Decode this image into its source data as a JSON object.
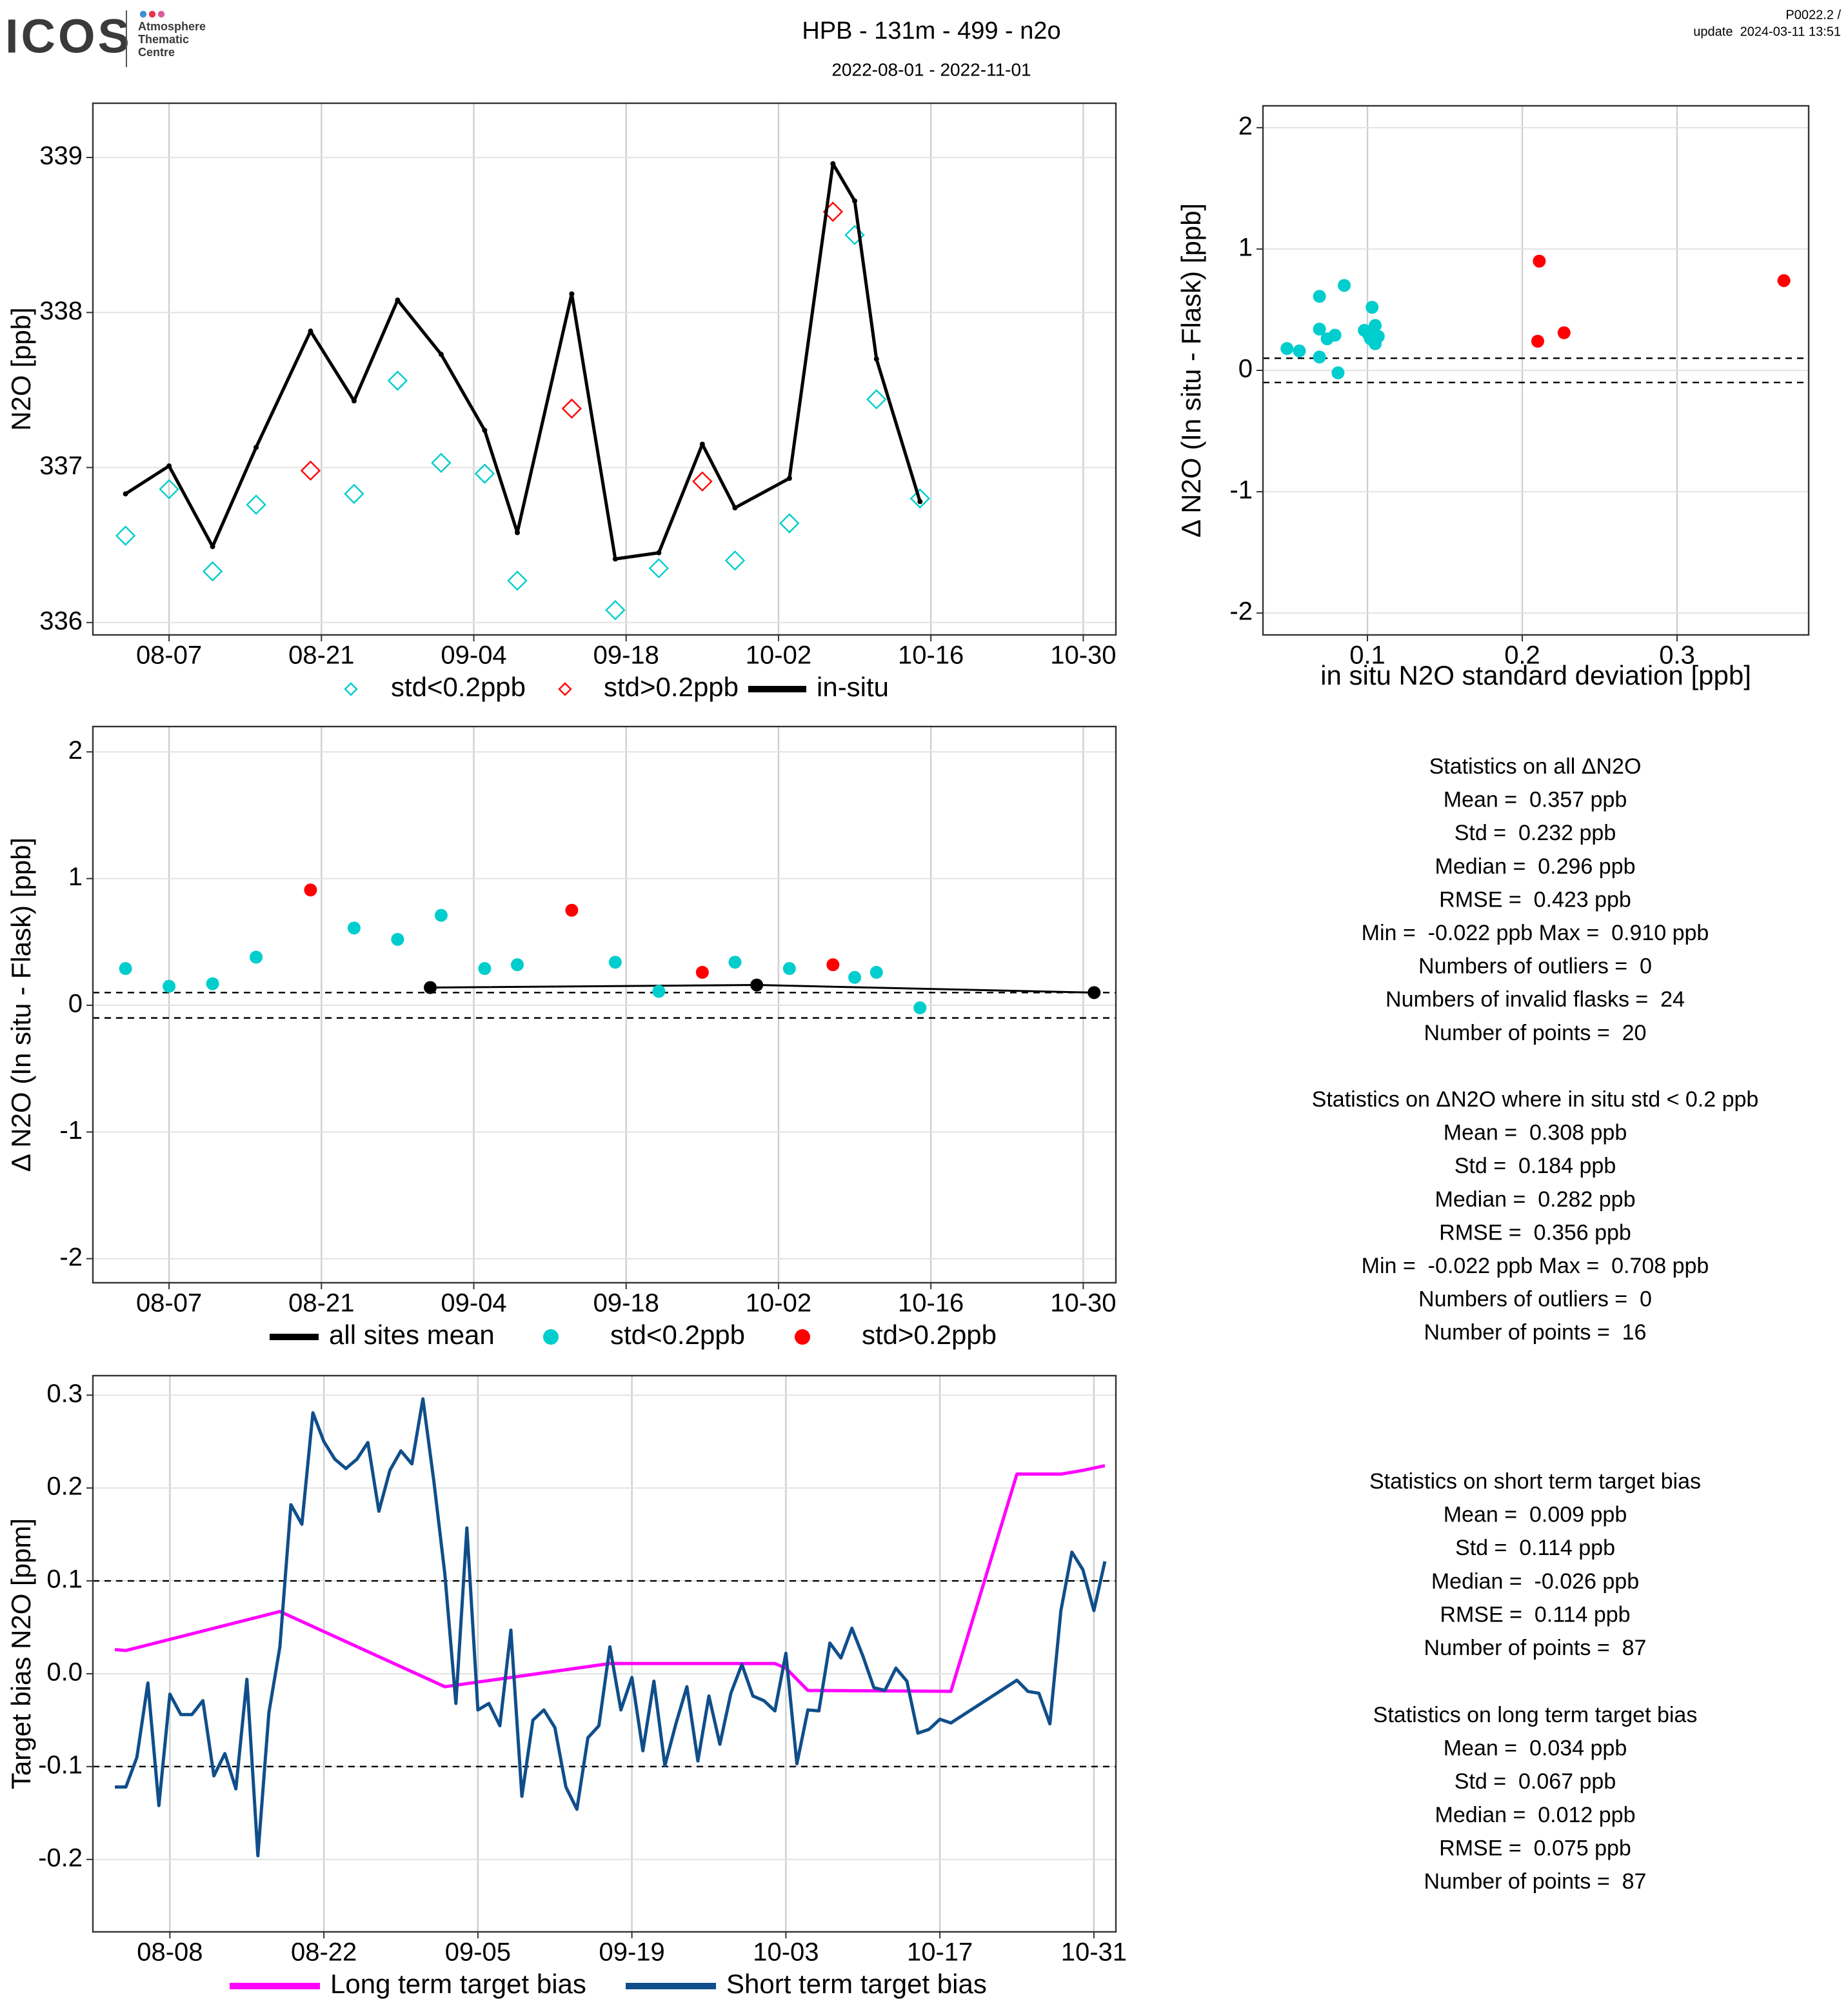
{
  "header": {
    "logo": "ICOS",
    "logo_lines": [
      "Atmosphere",
      "Thematic",
      "Centre"
    ],
    "title": "HPB - 131m - 499 - n2o",
    "period": "2022-08-01 - 2022-11-01",
    "version": "P0022.2 /",
    "update": "update  2024-03-11 13:51"
  },
  "chart_data": [
    {
      "type": "line",
      "ylabel": "N2O [ppb]",
      "xlim": [
        "07-31",
        "11-02"
      ],
      "xticks": [
        "08-07",
        "08-21",
        "09-04",
        "09-18",
        "10-02",
        "10-16",
        "10-30"
      ],
      "ylim": [
        335.92,
        339.35
      ],
      "yticks": [
        336,
        337,
        338,
        339
      ],
      "grid": true,
      "legend": "bottom",
      "series": [
        {
          "name": "std<0.2ppb",
          "type": "scatter",
          "marker": "diamond",
          "color": "#00cdcd",
          "x": [
            "08-03",
            "08-07",
            "08-11",
            "08-15",
            "08-24",
            "08-28",
            "09-01",
            "09-05",
            "09-08",
            "09-17",
            "09-21",
            "09-28",
            "10-03",
            "10-09",
            "10-11",
            "10-15"
          ],
          "values": [
            336.56,
            336.86,
            336.33,
            336.76,
            336.83,
            337.56,
            337.03,
            336.96,
            336.27,
            336.08,
            336.35,
            336.4,
            336.64,
            338.5,
            337.44,
            336.8
          ]
        },
        {
          "name": "std>0.2ppb",
          "type": "scatter",
          "marker": "diamond",
          "color": "#ff0000",
          "x": [
            "08-20",
            "09-13",
            "09-25",
            "10-07"
          ],
          "values": [
            336.98,
            337.38,
            336.91,
            338.65
          ]
        },
        {
          "name": "in-situ",
          "type": "line",
          "marker": "dot",
          "color": "#000000",
          "x": [
            "08-03",
            "08-07",
            "08-11",
            "08-15",
            "08-20",
            "08-24",
            "08-28",
            "09-01",
            "09-05",
            "09-08",
            "09-13",
            "09-17",
            "09-21",
            "09-25",
            "09-28",
            "10-03",
            "10-07",
            "10-09",
            "10-11",
            "10-15"
          ],
          "values": [
            336.83,
            337.01,
            336.49,
            337.13,
            337.88,
            337.43,
            338.08,
            337.73,
            337.24,
            336.58,
            338.12,
            336.41,
            336.45,
            337.15,
            336.74,
            336.93,
            338.96,
            338.72,
            337.7,
            336.78
          ]
        }
      ]
    },
    {
      "type": "scatter",
      "xlabel": "in situ N2O standard deviation [ppb]",
      "ylabel": "Δ N2O (In situ - Flask) [ppb]",
      "xlim": [
        0.0325,
        0.385
      ],
      "xticks": [
        0.1,
        0.2,
        0.3
      ],
      "ylim": [
        -2.18,
        2.18
      ],
      "yticks": [
        -2,
        -1,
        0,
        1,
        2
      ],
      "grid": true,
      "hlines": [
        0.1,
        -0.1
      ],
      "series": [
        {
          "marker": "circle",
          "color": "#00cdcd",
          "x": [
            0.048,
            0.056,
            0.069,
            0.069,
            0.069,
            0.074,
            0.079,
            0.081,
            0.085,
            0.098,
            0.101,
            0.103,
            0.105,
            0.107,
            0.105,
            0.102
          ],
          "values": [
            0.18,
            0.16,
            0.34,
            0.61,
            0.11,
            0.26,
            0.29,
            -0.02,
            0.7,
            0.33,
            0.29,
            0.52,
            0.37,
            0.28,
            0.22,
            0.26
          ]
        },
        {
          "marker": "circle",
          "color": "#ff0000",
          "x": [
            0.211,
            0.21,
            0.227,
            0.369
          ],
          "values": [
            0.9,
            0.24,
            0.31,
            0.74
          ]
        }
      ]
    },
    {
      "type": "scatter",
      "ylabel": "Δ N2O (In situ - Flask) [ppb]",
      "xlim": [
        "07-31",
        "11-02"
      ],
      "xticks": [
        "08-07",
        "08-21",
        "09-04",
        "09-18",
        "10-02",
        "10-16",
        "10-30"
      ],
      "ylim": [
        -2.19,
        2.2
      ],
      "yticks": [
        -2,
        -1,
        0,
        1,
        2
      ],
      "grid": true,
      "hlines": [
        0.1,
        -0.1
      ],
      "legend": "bottom",
      "series": [
        {
          "name": "all sites mean",
          "type": "line",
          "marker": "circle",
          "color": "#000000",
          "x": [
            "08-31",
            "09-30",
            "10-31"
          ],
          "values": [
            0.14,
            0.16,
            0.1
          ]
        },
        {
          "name": "std<0.2ppb",
          "marker": "circle",
          "color": "#00cdcd",
          "x": [
            "08-03",
            "08-07",
            "08-11",
            "08-15",
            "08-24",
            "08-28",
            "09-01",
            "09-05",
            "09-08",
            "09-17",
            "09-21",
            "09-28",
            "10-03",
            "10-09",
            "10-11",
            "10-15"
          ],
          "values": [
            0.29,
            0.15,
            0.17,
            0.38,
            0.61,
            0.52,
            0.71,
            0.29,
            0.32,
            0.34,
            0.11,
            0.34,
            0.29,
            0.22,
            0.26,
            -0.02
          ]
        },
        {
          "name": "std>0.2ppb",
          "marker": "circle",
          "color": "#ff0000",
          "x": [
            "08-20",
            "09-13",
            "09-25",
            "10-07"
          ],
          "values": [
            0.91,
            0.75,
            0.26,
            0.32
          ]
        }
      ]
    },
    {
      "type": "line",
      "ylabel": "Target bias N2O [ppm]",
      "xlim": [
        "08-01",
        "11-02"
      ],
      "xticks": [
        "08-08",
        "08-22",
        "09-05",
        "09-19",
        "10-03",
        "10-17",
        "10-31"
      ],
      "ylim": [
        -0.278,
        0.321
      ],
      "yticks": [
        -0.2,
        -0.1,
        {
          "value": 0,
          "label": "0.0"
        },
        0.1,
        0.2,
        0.3
      ],
      "grid": true,
      "hlines": [
        0.1,
        -0.1
      ],
      "legend": "bottom",
      "series": [
        {
          "name": "Long term target bias",
          "color": "#ff00ff",
          "x": [
            "08-03",
            "08-04",
            "08-18",
            "09-02",
            "09-17",
            "10-02",
            "10-03",
            "10-05",
            "10-18",
            "10-24",
            "10-28",
            "10-30",
            "11-01"
          ],
          "values": [
            0.026,
            0.025,
            0.067,
            -0.014,
            0.011,
            0.011,
            0.006,
            -0.018,
            -0.019,
            0.215,
            0.215,
            0.219,
            0.224
          ]
        },
        {
          "name": "Short term target bias",
          "color": "#104e8b",
          "x": [
            "08-03",
            "08-04",
            "08-05",
            "08-06",
            "08-07",
            "08-08",
            "08-09",
            "08-10",
            "08-11",
            "08-12",
            "08-13",
            "08-14",
            "08-15",
            "08-16",
            "08-17",
            "08-18",
            "08-19",
            "08-20",
            "08-21",
            "08-22",
            "08-23",
            "08-24",
            "08-25",
            "08-26",
            "08-27",
            "08-28",
            "08-29",
            "08-30",
            "08-31",
            "09-01",
            "09-02",
            "09-03",
            "09-04",
            "09-05",
            "09-06",
            "09-07",
            "09-08",
            "09-09",
            "09-10",
            "09-11",
            "09-12",
            "09-13",
            "09-14",
            "09-15",
            "09-16",
            "09-17",
            "09-18",
            "09-19",
            "09-20",
            "09-21",
            "09-22",
            "09-23",
            "09-24",
            "09-25",
            "09-26",
            "09-27",
            "09-28",
            "09-29",
            "09-30",
            "10-01",
            "10-02",
            "10-03",
            "10-04",
            "10-05",
            "10-06",
            "10-07",
            "10-08",
            "10-09",
            "10-10",
            "10-11",
            "10-12",
            "10-13",
            "10-14",
            "10-15",
            "10-16",
            "10-17",
            "10-18",
            "10-24",
            "10-25",
            "10-26",
            "10-27",
            "10-28",
            "10-29",
            "10-30",
            "10-31",
            "11-01"
          ],
          "values": [
            -0.122,
            -0.122,
            -0.09,
            -0.01,
            -0.142,
            -0.022,
            -0.044,
            -0.044,
            -0.029,
            -0.11,
            -0.086,
            -0.124,
            -0.006,
            -0.196,
            -0.042,
            0.029,
            0.182,
            0.161,
            0.281,
            0.25,
            0.231,
            0.221,
            0.231,
            0.249,
            0.175,
            0.219,
            0.24,
            0.226,
            0.296,
            0.207,
            0.107,
            -0.032,
            0.157,
            -0.039,
            -0.032,
            -0.056,
            0.047,
            -0.132,
            -0.05,
            -0.039,
            -0.058,
            -0.122,
            -0.146,
            -0.069,
            -0.056,
            0.029,
            -0.039,
            -0.004,
            -0.083,
            -0.008,
            -0.099,
            -0.054,
            -0.014,
            -0.094,
            -0.024,
            -0.076,
            -0.021,
            0.01,
            -0.024,
            -0.029,
            -0.04,
            0.022,
            -0.097,
            -0.039,
            -0.04,
            0.033,
            0.017,
            0.049,
            0.019,
            -0.015,
            -0.018,
            0.006,
            -0.008,
            -0.064,
            -0.06,
            -0.049,
            -0.053,
            -0.007,
            -0.019,
            -0.021,
            -0.054,
            0.068,
            0.131,
            0.112,
            0.068,
            0.121
          ]
        }
      ]
    }
  ],
  "stats": [
    [
      "Statistics on all ΔN2O",
      "Mean =  0.357 ppb",
      "Std =  0.232 ppb",
      "Median =  0.296 ppb",
      "RMSE =  0.423 ppb",
      "Min =  -0.022 ppb Max =  0.910 ppb",
      "Numbers of outliers =  0",
      "Numbers of invalid flasks =  24",
      "Number of points =  20"
    ],
    [
      "Statistics on ΔN2O where in situ std < 0.2 ppb",
      "Mean =  0.308 ppb",
      "Std =  0.184 ppb",
      "Median =  0.282 ppb",
      "RMSE =  0.356 ppb",
      "Min =  -0.022 ppb Max =  0.708 ppb",
      "Numbers of outliers =  0",
      "Number of points =  16"
    ],
    [
      "Statistics on short term target bias",
      "Mean =  0.009 ppb",
      "Std =  0.114 ppb",
      "Median =  -0.026 ppb",
      "RMSE =  0.114 ppb",
      "Number of points =  87"
    ],
    [
      "Statistics on long term target bias",
      "Mean =  0.034 ppb",
      "Std =  0.067 ppb",
      "Median =  0.012 ppb",
      "RMSE =  0.075 ppb",
      "Number of points =  87"
    ]
  ]
}
